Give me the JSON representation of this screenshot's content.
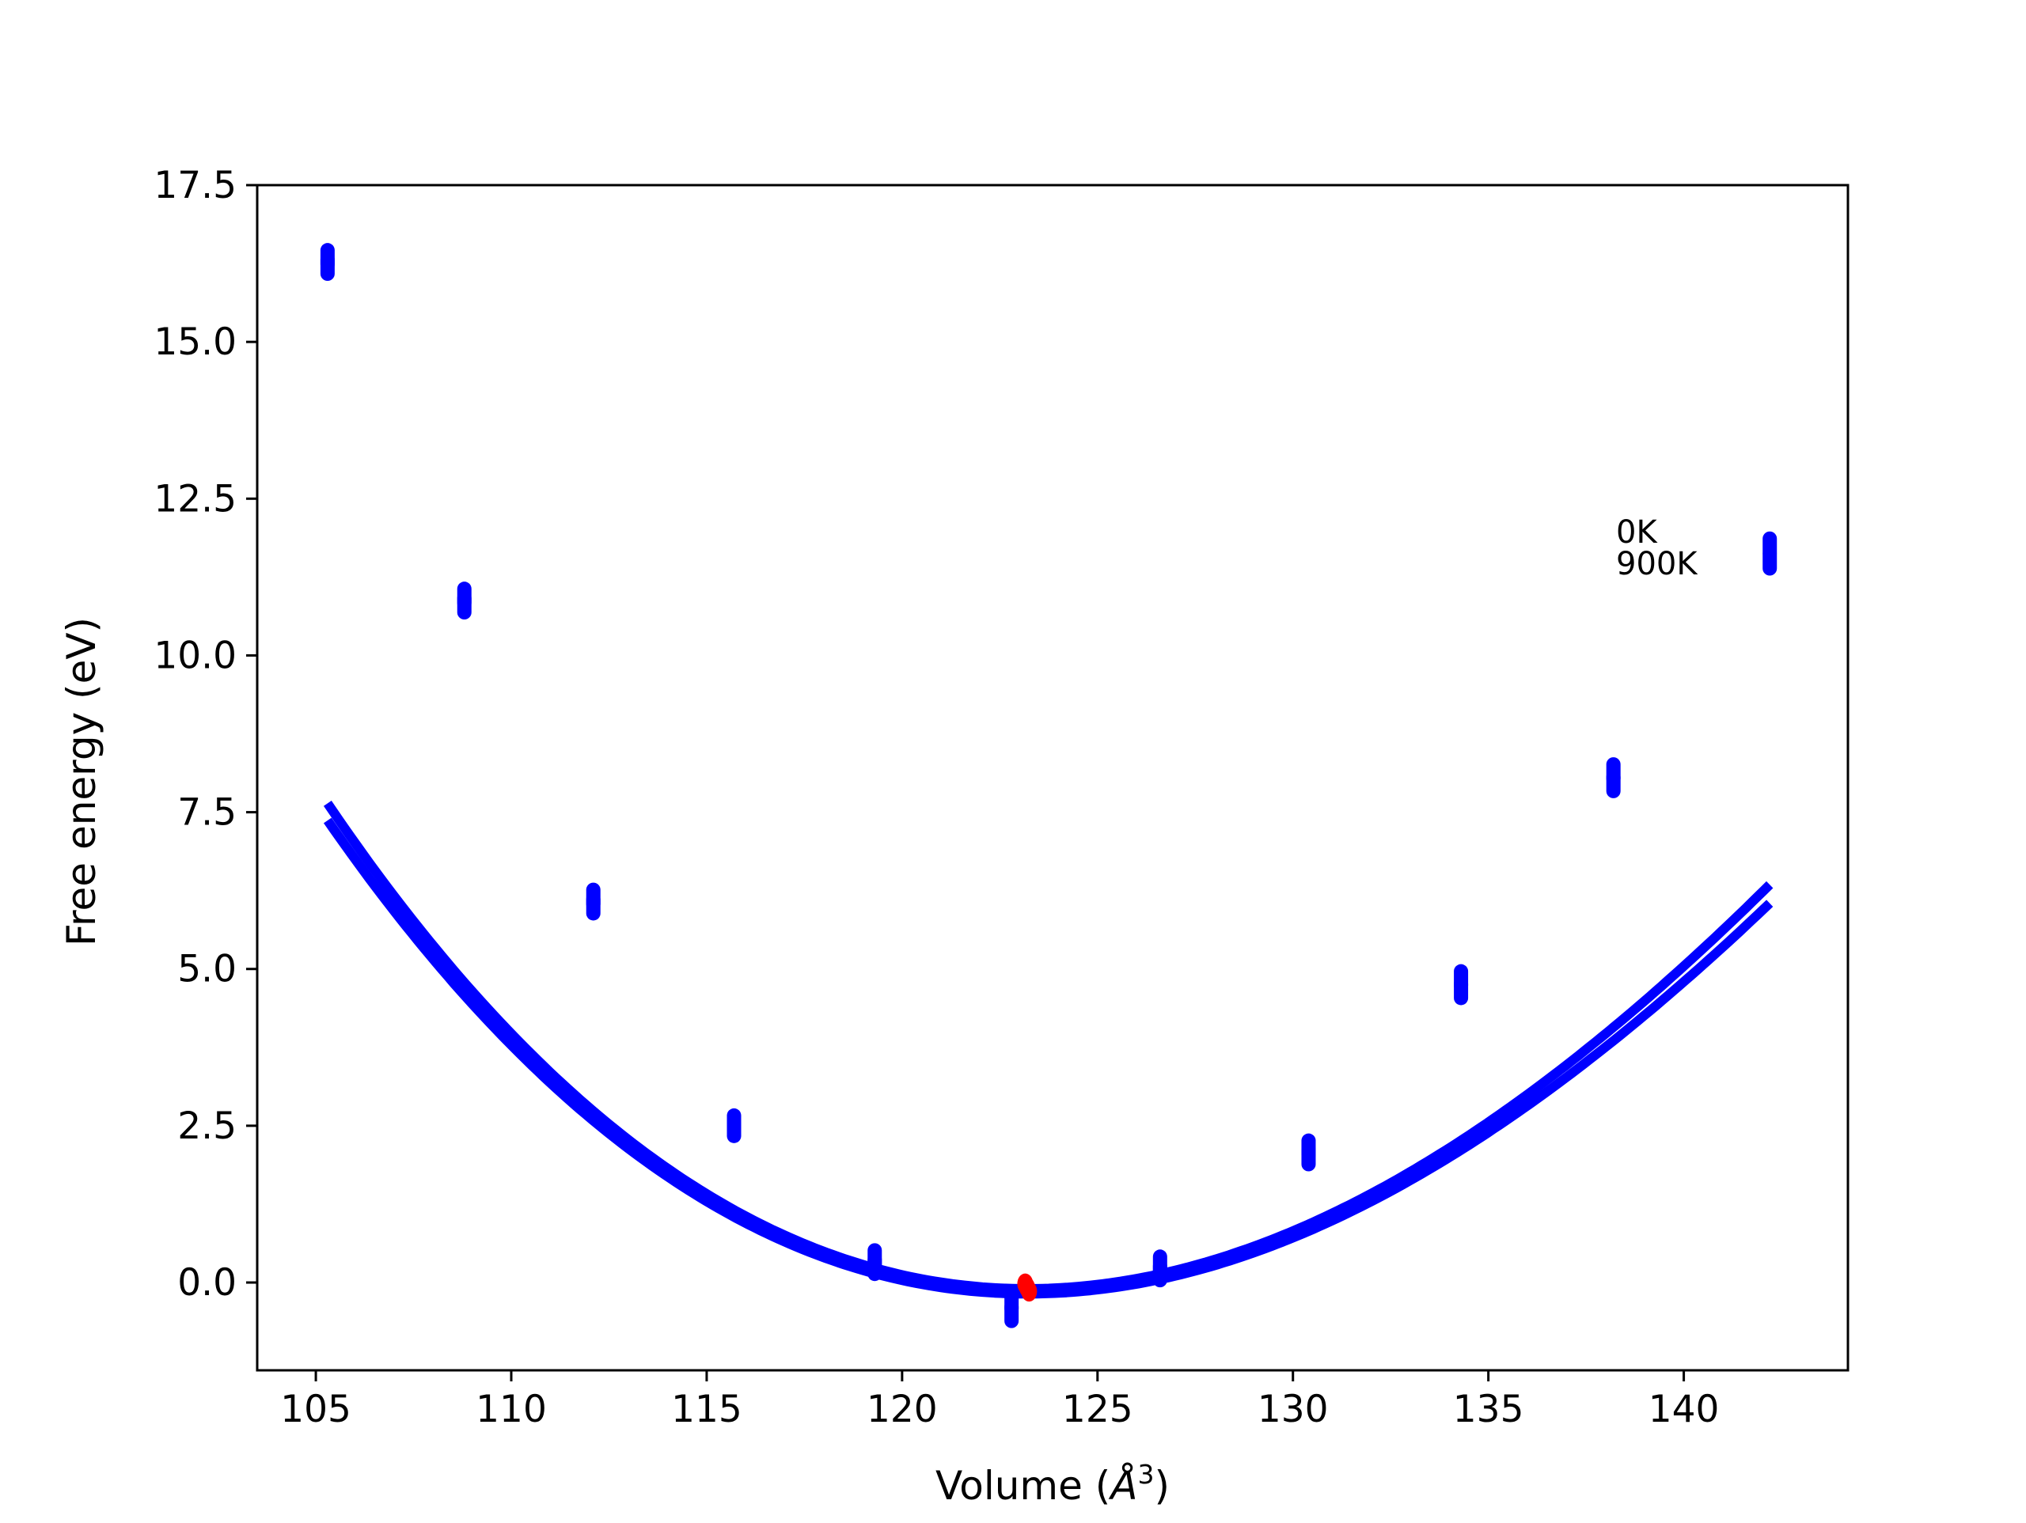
{
  "chart_data": {
    "type": "scatter",
    "title": "",
    "xlabel_prefix": "Volume (",
    "xlabel_unit": "Å",
    "xlabel_exp": "3",
    "xlabel_suffix": ")",
    "ylabel": "Free energy (eV)",
    "xlim": [
      103.5,
      144.2
    ],
    "ylim": [
      -1.4,
      17.5
    ],
    "xticks": [
      105,
      110,
      115,
      120,
      125,
      130,
      135,
      140
    ],
    "yticks": [
      0.0,
      2.5,
      5.0,
      7.5,
      10.0,
      12.5,
      15.0,
      17.5
    ],
    "xtick_labels": [
      "105",
      "110",
      "115",
      "120",
      "125",
      "130",
      "135",
      "140"
    ],
    "ytick_labels": [
      "0.0",
      "2.5",
      "5.0",
      "7.5",
      "10.0",
      "12.5",
      "15.0",
      "17.5"
    ],
    "grid": false,
    "legend_labels": [
      "0K",
      "900K"
    ],
    "colors": {
      "series": "#0000ff",
      "minimum": "#ff0000",
      "frame": "#000000"
    },
    "series": [
      {
        "name": "0K",
        "x": [
          105.3,
          108.8,
          112.1,
          115.7,
          119.3,
          122.8,
          126.6,
          130.4,
          134.3,
          138.2,
          142.2
        ],
        "y": [
          16.35,
          10.95,
          6.15,
          2.55,
          0.4,
          -0.3,
          0.3,
          2.15,
          4.85,
          8.15,
          11.75
        ]
      },
      {
        "name": "900K",
        "x": [
          105.3,
          108.8,
          112.1,
          115.7,
          119.3,
          122.8,
          126.6,
          130.4,
          134.3,
          138.2,
          142.2
        ],
        "y": [
          16.2,
          10.8,
          6.0,
          2.45,
          0.25,
          -0.5,
          0.15,
          2.0,
          4.65,
          7.95,
          11.5
        ]
      }
    ],
    "fit_curves": [
      {
        "name": "0K",
        "v0": 123.2,
        "e0": -0.1,
        "a": 0.0211,
        "b": -0.000171,
        "xrange": [
          105.3,
          142.2
        ]
      },
      {
        "name": "900K",
        "v0": 123.2,
        "e0": -0.18,
        "a": 0.0205,
        "b": -0.000171,
        "xrange": [
          105.3,
          142.2
        ]
      }
    ],
    "minima": {
      "x": [
        123.15,
        123.2,
        123.25
      ],
      "y": [
        -0.02,
        -0.08,
        -0.14
      ]
    }
  }
}
